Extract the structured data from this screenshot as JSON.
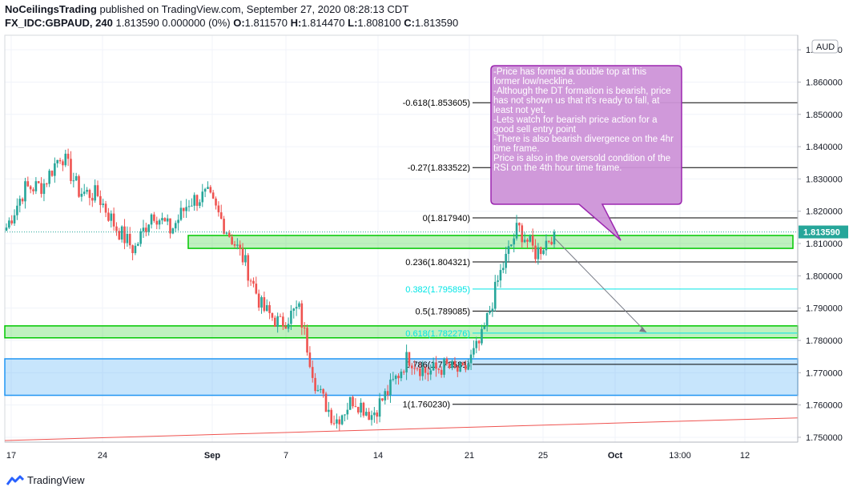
{
  "header": {
    "author": "NoCeilingsTrading",
    "published": "published on TradingView.com, September 27, 2020 08:28:13 CDT",
    "symbol": "FX_IDC:GBPAUD, 240",
    "quote": "1.813590 0.000000 (0%)",
    "o_label": "O:",
    "o_value": "1.811570",
    "h_label": "H:",
    "h_value": "1.814470",
    "l_label": "L:",
    "l_value": "1.808100",
    "c_label": "C:",
    "c_value": "1.813590"
  },
  "footer": {
    "brand": "TradingView",
    "logo_icon": "tradingview-logo-icon"
  },
  "currency_label": "AUD",
  "last_price_label": "1.813590",
  "annotation": "-Price has formed a double top at this former low/neckline.\n-Although the DT formation is bearish, price has not shown us that it's ready to fall, at least not yet.\n-Lets watch for bearish price action for a good sell entry point\n-There is also bearish divergence on the 4hr time frame.\nPrice is also in the oversold condition of the RSI on the 4th hour time frame.",
  "chart_data": {
    "type": "candlestick",
    "series_name": "GBPAUD, 240",
    "ylim": [
      1.7485,
      1.8745
    ],
    "y_ticks": [
      "1.750000",
      "1.760000",
      "1.770000",
      "1.780000",
      "1.790000",
      "1.800000",
      "1.810000",
      "1.820000",
      "1.830000",
      "1.840000",
      "1.850000",
      "1.860000",
      "1.870000"
    ],
    "x_ticks": [
      "17",
      "24",
      "Sep",
      "7",
      "14",
      "21",
      "25",
      "Oct",
      "13:00",
      "12"
    ],
    "path": [
      [
        "Aug 17",
        1.815
      ],
      [
        "Aug 19",
        1.827
      ],
      [
        "Aug 21",
        1.828
      ],
      [
        "Aug 22",
        1.838
      ],
      [
        "Aug 24",
        1.826
      ],
      [
        "Aug 27",
        1.825
      ],
      [
        "Aug 30",
        1.815
      ],
      [
        "Sep 1",
        1.808
      ],
      [
        "Sep 2",
        1.82
      ],
      [
        "Sep 3",
        1.814
      ],
      [
        "Sep 4",
        1.823
      ],
      [
        "Sep 5",
        1.825
      ],
      [
        "Sep 7",
        1.815
      ],
      [
        "Sep 8",
        1.805
      ],
      [
        "Sep 9",
        1.79
      ],
      [
        "Sep 10",
        1.785
      ],
      [
        "Sep 11",
        1.79
      ],
      [
        "Sep 12",
        1.765
      ],
      [
        "Sep 13",
        1.755
      ],
      [
        "Sep 14",
        1.762
      ],
      [
        "Sep 16",
        1.757
      ],
      [
        "Sep 17",
        1.765
      ],
      [
        "Sep 18",
        1.775
      ],
      [
        "Sep 19",
        1.77
      ],
      [
        "Sep 21",
        1.772
      ],
      [
        "Sep 22",
        1.77
      ],
      [
        "Sep 23",
        1.78
      ],
      [
        "Sep 24",
        1.8
      ],
      [
        "Sep 24b",
        1.815
      ],
      [
        "Sep 25",
        1.807
      ],
      [
        "Sep 26",
        1.8136
      ]
    ],
    "fibonacci": [
      {
        "label": "-0.618(1.853605)",
        "value": 1.853605,
        "color": "#000000"
      },
      {
        "label": "-0.27(1.833522)",
        "value": 1.833522,
        "color": "#000000"
      },
      {
        "label": "0(1.817940)",
        "value": 1.81794,
        "color": "#000000"
      },
      {
        "label": "0.236(1.804321)",
        "value": 1.804321,
        "color": "#000000"
      },
      {
        "label": "0.382(1.795895)",
        "value": 1.795895,
        "color": "#00e5e5"
      },
      {
        "label": "0.5(1.789085)",
        "value": 1.789085,
        "color": "#000000"
      },
      {
        "label": "0.618(1.782276)",
        "value": 1.782276,
        "color": "#00e5e5"
      },
      {
        "label": "0.786(1.772581)",
        "value": 1.772581,
        "color": "#000000"
      },
      {
        "label": "1(1.760230)",
        "value": 1.76023,
        "color": "#000000"
      }
    ],
    "zones": [
      {
        "name": "upper-green-zone",
        "from": 1.8085,
        "to": 1.8125,
        "color": "#00c800"
      },
      {
        "name": "middle-green-zone",
        "from": 1.7808,
        "to": 1.7845,
        "color": "#00c800"
      },
      {
        "name": "blue-zone",
        "from": 1.763,
        "to": 1.7743,
        "color": "#2196f3"
      }
    ],
    "last_price": 1.81359,
    "grid": true,
    "legend": "none"
  }
}
